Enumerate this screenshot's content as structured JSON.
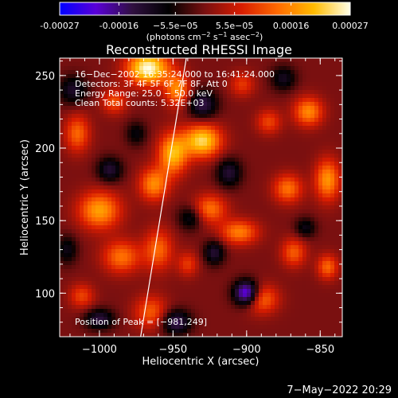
{
  "chart_data": {
    "type": "heatmap",
    "title": "Reconstructed RHESSI Image",
    "xlabel": "Heliocentric X (arcsec)",
    "ylabel": "Heliocentric Y (arcsec)",
    "xlim": [
      -1027,
      -835
    ],
    "ylim": [
      70,
      262
    ],
    "xticks": [
      -1000,
      -950,
      -900,
      -850
    ],
    "xtick_labels": [
      "−1000",
      "−950",
      "−900",
      "−850"
    ],
    "yticks": [
      100,
      150,
      200,
      250
    ],
    "ytick_labels": [
      "100",
      "150",
      "200",
      "250"
    ],
    "grid": false,
    "colorbar": {
      "position": "top",
      "colormap": [
        "#0000ff",
        "#5a00d8",
        "#301040",
        "#000000",
        "#7a1010",
        "#d81c00",
        "#ff6a00",
        "#ffbb00",
        "#ffffe8"
      ],
      "range": [
        -0.00027,
        0.00027
      ],
      "ticks": [
        -0.00027,
        -0.00016,
        -5.5e-05,
        5.5e-05,
        0.00016,
        0.00027
      ],
      "tick_labels": [
        "-0.00027",
        "-0.00016",
        "−5.5e−05",
        "5.5e−05",
        "0.00016",
        "0.00027"
      ],
      "unit_parts": [
        "(photons cm",
        "−2",
        " s",
        "−1",
        " asec",
        "−2",
        ")"
      ]
    },
    "annotations": [
      "16−Dec−2002 16:35:24.000 to 16:41:24.000",
      "Detectors: 3F 4F 5F 6F 7F 8F, Att 0",
      "Energy Range: 25.0 − 50.0 keV",
      "Clean     Total counts: 5.32E+03"
    ],
    "peak_label": "Position of Peak = [−981,249]",
    "peak": [
      -981,
      249
    ],
    "limb_line": [
      [
        -972,
        70
      ],
      [
        -941,
        262
      ]
    ],
    "blobs": [
      {
        "x": -967,
        "y": 255,
        "sx": 10,
        "sy": 8,
        "v": 0.00027
      },
      {
        "x": -947,
        "y": 240,
        "sx": 6,
        "sy": 8,
        "v": 0.00016
      },
      {
        "x": -930,
        "y": 205,
        "sx": 9,
        "sy": 8,
        "v": 0.00023
      },
      {
        "x": -950,
        "y": 196,
        "sx": 7,
        "sy": 10,
        "v": 0.0002
      },
      {
        "x": -963,
        "y": 175,
        "sx": 7,
        "sy": 8,
        "v": 0.00016
      },
      {
        "x": -1000,
        "y": 157,
        "sx": 10,
        "sy": 9,
        "v": 0.00018
      },
      {
        "x": -1015,
        "y": 210,
        "sx": 6,
        "sy": 9,
        "v": 0.00013
      },
      {
        "x": -990,
        "y": 232,
        "sx": 6,
        "sy": 6,
        "v": 0.00011
      },
      {
        "x": -985,
        "y": 125,
        "sx": 9,
        "sy": 8,
        "v": 0.00014
      },
      {
        "x": -1012,
        "y": 98,
        "sx": 6,
        "sy": 6,
        "v": 0.0001
      },
      {
        "x": -960,
        "y": 130,
        "sx": 7,
        "sy": 10,
        "v": 0.00013
      },
      {
        "x": -965,
        "y": 87,
        "sx": 8,
        "sy": 8,
        "v": 0.00012
      },
      {
        "x": -925,
        "y": 158,
        "sx": 8,
        "sy": 7,
        "v": 0.00014
      },
      {
        "x": -905,
        "y": 142,
        "sx": 9,
        "sy": 6,
        "v": 0.00015
      },
      {
        "x": -858,
        "y": 225,
        "sx": 7,
        "sy": 7,
        "v": 0.00016
      },
      {
        "x": -845,
        "y": 178,
        "sx": 6,
        "sy": 10,
        "v": 0.00017
      },
      {
        "x": -872,
        "y": 172,
        "sx": 7,
        "sy": 7,
        "v": 0.00014
      },
      {
        "x": -868,
        "y": 128,
        "sx": 6,
        "sy": 7,
        "v": 0.00012
      },
      {
        "x": -845,
        "y": 118,
        "sx": 5,
        "sy": 6,
        "v": 0.00013
      },
      {
        "x": -890,
        "y": 96,
        "sx": 8,
        "sy": 7,
        "v": 0.00014
      },
      {
        "x": -903,
        "y": 244,
        "sx": 6,
        "sy": 6,
        "v": 9e-05
      },
      {
        "x": -940,
        "y": 120,
        "sx": 5,
        "sy": 6,
        "v": 9e-05
      },
      {
        "x": -885,
        "y": 218,
        "sx": 6,
        "sy": 6,
        "v": 0.0001
      },
      {
        "x": -993,
        "y": 185,
        "sx": 6,
        "sy": 6,
        "v": -0.00012
      },
      {
        "x": -1018,
        "y": 240,
        "sx": 7,
        "sy": 7,
        "v": -0.00011
      },
      {
        "x": -930,
        "y": 230,
        "sx": 7,
        "sy": 7,
        "v": -0.00014
      },
      {
        "x": -912,
        "y": 183,
        "sx": 6,
        "sy": 7,
        "v": -0.00012
      },
      {
        "x": -900,
        "y": 100,
        "sx": 6,
        "sy": 6,
        "v": -0.00025
      },
      {
        "x": -948,
        "y": 80,
        "sx": 7,
        "sy": 6,
        "v": -0.00015
      },
      {
        "x": -1000,
        "y": 82,
        "sx": 7,
        "sy": 5,
        "v": -0.00013
      },
      {
        "x": -922,
        "y": 128,
        "sx": 5,
        "sy": 6,
        "v": -0.00012
      },
      {
        "x": -938,
        "y": 152,
        "sx": 6,
        "sy": 6,
        "v": -0.0001
      },
      {
        "x": -875,
        "y": 248,
        "sx": 6,
        "sy": 6,
        "v": -0.0001
      },
      {
        "x": -860,
        "y": 145,
        "sx": 5,
        "sy": 5,
        "v": -9e-05
      },
      {
        "x": -1022,
        "y": 130,
        "sx": 5,
        "sy": 7,
        "v": -9e-05
      },
      {
        "x": -975,
        "y": 210,
        "sx": 5,
        "sy": 6,
        "v": -8e-05
      }
    ]
  },
  "footer": {
    "date_stamp": "7−May−2022 20:29"
  }
}
